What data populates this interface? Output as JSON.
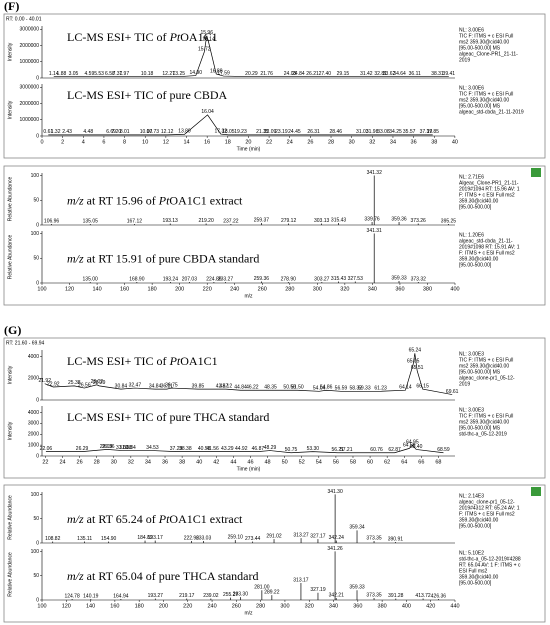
{
  "chart_data": [
    {
      "type": "line",
      "panel": "(F)",
      "header": "RT: 0.00 - 40.01",
      "xlabel": "Time (min)",
      "ylabel": "Intensity",
      "xlim": [
        0,
        40.01
      ],
      "xticks": [
        0,
        2,
        4,
        6,
        8,
        10,
        12,
        14,
        16,
        18,
        20,
        22,
        24,
        26,
        28,
        30,
        32,
        34,
        36,
        38,
        40
      ],
      "series": [
        {
          "title": [
            "LC-MS ESI+ TIC of ",
            "Pt",
            "OA1C1"
          ],
          "title_italic": [
            false,
            true,
            false
          ],
          "color": "#000000",
          "info": [
            "NL: 3.00E6",
            "TIC F: ITMS + c ESI Full",
            "ms2 359.30@cid40.00",
            "[95.00-500.00] MS",
            "algeac_Clone-PR1_21-11-",
            "2019"
          ],
          "ylim": [
            0,
            3200000
          ],
          "yticks": [
            0,
            1000000,
            2000000,
            3000000
          ],
          "x": [
            1.14,
            1.88,
            3.05,
            4.59,
            5.53,
            6.58,
            7.31,
            7.97,
            10.18,
            12.27,
            13.25,
            14.9,
            15.72,
            15.96,
            16.14,
            16.88,
            17.59,
            20.29,
            21.76,
            24.03,
            24.84,
            26.21,
            27.4,
            29.15,
            31.42,
            32.81,
            33.62,
            34.64,
            36.11,
            38.31,
            39.41
          ],
          "x_labels": [
            "1.14",
            "1.88",
            "3.05",
            "4.59",
            "5.53",
            "6.58",
            "7.31",
            "7.97",
            "10.18",
            "12.27",
            "13.25",
            "14.90",
            "15.72",
            "15.96",
            "16.14",
            "16.88",
            "17.59",
            "20.29",
            "21.76",
            "24.03",
            "24.84",
            "26.21",
            "27.40",
            "29.15",
            "31.42",
            "32.81",
            "33.62",
            "34.64",
            "36.11",
            "38.31",
            "39.41"
          ],
          "values": [
            90000,
            80000,
            80000,
            80000,
            80000,
            80000,
            80000,
            80000,
            80000,
            80000,
            80000,
            150000,
            1600000,
            2600000,
            2200000,
            250000,
            120000,
            80000,
            80000,
            80000,
            80000,
            80000,
            80000,
            80000,
            80000,
            80000,
            80000,
            80000,
            80000,
            80000,
            80000
          ]
        },
        {
          "title": [
            "LC-MS ESI+ TIC of pure CBDA"
          ],
          "title_italic": [
            false
          ],
          "color": "#000000",
          "info": [
            "NL: 3.00E6",
            "TIC F: ITMS + c ESI Full",
            "ms2 359.30@cid40.00",
            "[95.00-500.00] MS",
            "algeac_std-cbda_21-11-2019"
          ],
          "ylim": [
            0,
            3200000
          ],
          "yticks": [
            0,
            1000000,
            2000000,
            3000000
          ],
          "x": [
            0.61,
            1.32,
            2.43,
            4.48,
            6.69,
            7.2,
            8.01,
            10.07,
            10.73,
            12.12,
            13.8,
            16.04,
            17.32,
            18.05,
            19.23,
            21.35,
            22.09,
            23.19,
            24.45,
            26.31,
            28.46,
            31.03,
            31.98,
            33.08,
            34.25,
            35.57,
            37.19,
            37.85
          ],
          "x_labels": [
            "0.61",
            "1.32",
            "2.43",
            "4.48",
            "6.69",
            "7.20",
            "8.01",
            "10.07",
            "10.73",
            "12.12",
            "13.80",
            "16.04",
            "17.32",
            "18.05",
            "19.23",
            "21.35",
            "22.09",
            "23.19",
            "24.45",
            "26.31",
            "28.46",
            "31.03",
            "31.98",
            "33.08",
            "34.25",
            "35.57",
            "37.19",
            "37.85"
          ],
          "values": [
            70000,
            70000,
            70000,
            70000,
            70000,
            70000,
            70000,
            70000,
            70000,
            70000,
            100000,
            1300000,
            120000,
            70000,
            70000,
            70000,
            70000,
            70000,
            70000,
            70000,
            70000,
            70000,
            70000,
            70000,
            70000,
            70000,
            70000,
            70000
          ]
        }
      ]
    },
    {
      "type": "stem",
      "xlabel": "m/z",
      "ylabel": "Relative Abundance",
      "xlim": [
        100,
        400
      ],
      "xticks": [
        100,
        120,
        140,
        160,
        180,
        200,
        220,
        240,
        260,
        280,
        300,
        320,
        340,
        360,
        380,
        400
      ],
      "series": [
        {
          "title": [
            "m/z",
            " at RT 15.96 of ",
            "Pt",
            "OA1C1 extract"
          ],
          "title_italic": [
            true,
            false,
            true,
            false
          ],
          "color": "#000000",
          "info": [
            "NL: 2.71E6",
            "Algeac_Clone-PR1_21-11-",
            "2019#1094 RT: 15.96 AV: 1",
            "F: ITMS + c ESI Full ms2",
            "359.30@cid40.00",
            "[95.00-500.00]"
          ],
          "ylim": [
            0,
            105
          ],
          "yticks": [
            0,
            50,
            100
          ],
          "x": [
            106.96,
            135.05,
            167.12,
            193.13,
            219.2,
            237.22,
            259.37,
            279.12,
            303.13,
            315.43,
            339.76,
            341.32,
            359.36,
            373.26,
            395.25
          ],
          "x_labels": [
            "106.96",
            "135.05",
            "167.12",
            "193.13",
            "219.20",
            "237.22",
            "259.37",
            "279.12",
            "303.13",
            "315.43",
            "339.76",
            "341.32",
            "359.36",
            "373.26",
            "395.25"
          ],
          "values": [
            2,
            2,
            2,
            3,
            3,
            2,
            4,
            3,
            3,
            4,
            6,
            100,
            6,
            3,
            2
          ]
        },
        {
          "title": [
            "m/z",
            " at RT 15.91 of pure CBDA standard"
          ],
          "title_italic": [
            true,
            false
          ],
          "color": "#000000",
          "info": [
            "NL: 1.20E6",
            "algeac_std-cbda_21-11-",
            "2019#1098 RT: 15.91 AV: 1",
            "F: ITMS + c ESI Full ms2",
            "359.30@cid40.00",
            "[95.00-500.00]"
          ],
          "ylim": [
            0,
            105
          ],
          "yticks": [
            0,
            50,
            100
          ],
          "x": [
            135.0,
            168.9,
            193.24,
            207.03,
            224.86,
            233.27,
            259.36,
            278.9,
            303.27,
            315.43,
            327.53,
            341.31,
            359.33,
            373.32
          ],
          "x_labels": [
            "135.00",
            "168.90",
            "193.24",
            "207.03",
            "224.86",
            "233.27",
            "259.36",
            "278.90",
            "303.27",
            "315.43",
            "327.53",
            "341.31",
            "359.33",
            "373.32"
          ],
          "values": [
            2,
            2,
            2,
            2,
            2,
            2,
            3,
            2,
            2,
            3,
            3,
            100,
            4,
            2
          ]
        }
      ]
    },
    {
      "type": "line",
      "panel": "(G)",
      "header": "RT: 21.60 - 69.94",
      "xlabel": "Time (min)",
      "ylabel": "Intensity",
      "xlim": [
        21.6,
        69.94
      ],
      "xticks": [
        22,
        24,
        26,
        28,
        30,
        32,
        34,
        36,
        38,
        40,
        42,
        44,
        46,
        48,
        50,
        52,
        54,
        56,
        58,
        60,
        62,
        64,
        66,
        68
      ],
      "series": [
        {
          "title": [
            "LC-MS ESI+ TIC of ",
            "Pt",
            "OA1C1"
          ],
          "title_italic": [
            false,
            true,
            false
          ],
          "color": "#000000",
          "info": [
            "NL: 3.00E3",
            "TIC F: ITMS + c ESI Full",
            "ms2 359.30@cid40.00",
            "[95.00-500.00] MS",
            "algeac_clone-pr1_05-12-",
            "2019"
          ],
          "ylim": [
            0,
            4600
          ],
          "yticks": [
            0,
            2000,
            4000
          ],
          "x": [
            21.92,
            22.92,
            25.38,
            26.56,
            28.02,
            28.29,
            30.84,
            32.47,
            34.84,
            36.21,
            36.75,
            39.85,
            42.67,
            43.12,
            44.84,
            46.22,
            48.35,
            50.59,
            51.5,
            54.04,
            54.86,
            56.59,
            58.32,
            59.33,
            61.23,
            64.14,
            65.05,
            65.24,
            65.51,
            66.15,
            69.61
          ],
          "x_labels": [
            "21.92",
            "22.92",
            "25.38",
            "26.56",
            "28.02",
            "28.29",
            "30.84",
            "32.47",
            "34.84",
            "36.21",
            "36.75",
            "39.85",
            "42.67",
            "43.12",
            "44.84",
            "46.22",
            "48.35",
            "50.59",
            "51.50",
            "54.04",
            "54.86",
            "56.59",
            "58.32",
            "59.33",
            "61.23",
            "64.14",
            "65.05",
            "65.24",
            "65.51",
            "66.15",
            "69.61"
          ],
          "values": [
            1500,
            1200,
            1300,
            1100,
            1400,
            1300,
            1000,
            1100,
            1000,
            1000,
            1100,
            1000,
            1000,
            1000,
            900,
            900,
            900,
            900,
            900,
            800,
            900,
            800,
            800,
            800,
            800,
            900,
            3300,
            4300,
            2700,
            1000,
            500
          ]
        },
        {
          "title": [
            "LC-MS ESI+ TIC of pure THCA standard"
          ],
          "title_italic": [
            false
          ],
          "color": "#000000",
          "info": [
            "NL: 3.00E3",
            "TIC F: ITMS + c ESI Full",
            "ms2 359.30@cid40.00",
            "[95.00-500.00] MS",
            "std-thc-a_05-12-2019"
          ],
          "ylim": [
            0,
            4600
          ],
          "yticks": [
            0,
            1000,
            2000,
            3000,
            4000
          ],
          "x": [
            22.06,
            26.29,
            29.09,
            29.36,
            31.0,
            31.38,
            31.84,
            34.53,
            37.29,
            38.38,
            40.58,
            41.56,
            43.29,
            44.92,
            46.87,
            48.29,
            50.75,
            53.3,
            56.21,
            57.21,
            60.76,
            62.87,
            64.59,
            64.95,
            65.4,
            68.59
          ],
          "x_labels": [
            "22.06",
            "26.29",
            "29.09",
            "29.36",
            "31.00",
            "31.38",
            "31.84",
            "34.53",
            "37.29",
            "38.38",
            "40.58",
            "41.56",
            "43.29",
            "44.92",
            "46.87",
            "48.29",
            "50.75",
            "53.30",
            "56.21",
            "57.21",
            "60.76",
            "62.87",
            "64.59",
            "64.95",
            "65.40",
            "68.59"
          ],
          "values": [
            400,
            400,
            600,
            600,
            500,
            500,
            500,
            500,
            400,
            400,
            400,
            400,
            400,
            400,
            400,
            500,
            300,
            400,
            300,
            300,
            300,
            300,
            700,
            1000,
            600,
            300
          ]
        }
      ]
    },
    {
      "type": "stem",
      "xlabel": "m/z",
      "ylabel": "Relative Abundance",
      "xlim": [
        100,
        440
      ],
      "xticks": [
        100,
        120,
        140,
        160,
        180,
        200,
        220,
        240,
        260,
        280,
        300,
        320,
        340,
        360,
        380,
        400,
        420,
        440
      ],
      "series": [
        {
          "title": [
            "m/z",
            " at RT 65.24 of ",
            "Pt",
            "OA1C1 extract"
          ],
          "title_italic": [
            true,
            false,
            true,
            false
          ],
          "color": "#000000",
          "info": [
            "NL: 2.14E3",
            "algeac_clone-pr1_05-12-",
            "2019#4312 RT: 65.24 AV: 1",
            "F: ITMS + c ESI Full ms2",
            "359.30@cid40.00",
            "[95.00-500.00]"
          ],
          "ylim": [
            0,
            105
          ],
          "yticks": [
            0,
            50,
            100
          ],
          "x": [
            108.82,
            135.11,
            154.9,
            184.82,
            193.17,
            222.96,
            233.03,
            259.1,
            273.44,
            291.02,
            313.27,
            327.17,
            341.3,
            342.24,
            359.34,
            373.35,
            390.91
          ],
          "x_labels": [
            "108.82",
            "135.11",
            "154.90",
            "184.82",
            "193.17",
            "222.96",
            "233.03",
            "259.10",
            "273.44",
            "291.02",
            "313.27",
            "327.17",
            "341.30",
            "342.24",
            "359.34",
            "373.35",
            "390.91"
          ],
          "values": [
            3,
            3,
            3,
            5,
            5,
            4,
            4,
            6,
            3,
            8,
            10,
            8,
            100,
            5,
            26,
            4,
            2
          ]
        },
        {
          "title": [
            "m/z",
            " at RT 65.04 of pure THCA standard"
          ],
          "title_italic": [
            true,
            false
          ],
          "color": "#000000",
          "info": [
            "NL: 5.10E2",
            "std-thc-a_05-12-2019#4288",
            "RT: 65.04 AV: 1 F: ITMS + c",
            "ESI Full ms2",
            "359.30@cid40.00",
            "[95.00-500.00]"
          ],
          "ylim": [
            0,
            105
          ],
          "yticks": [
            0,
            50,
            100
          ],
          "x": [
            124.78,
            140.19,
            164.94,
            193.27,
            219.17,
            239.02,
            255.27,
            263.3,
            281.0,
            289.22,
            313.17,
            327.19,
            341.26,
            342.21,
            359.33,
            373.35,
            391.28,
            413.72,
            426.36
          ],
          "x_labels": [
            "124.78",
            "140.19",
            "164.94",
            "193.27",
            "219.17",
            "239.02",
            "255.27",
            "263.30",
            "281.00",
            "289.22",
            "313.17",
            "327.19",
            "341.26",
            "342.21",
            "359.33",
            "373.35",
            "391.28",
            "413.72",
            "426.36"
          ],
          "values": [
            2,
            2,
            2,
            3,
            3,
            3,
            5,
            6,
            20,
            10,
            35,
            15,
            100,
            4,
            20,
            4,
            3,
            3,
            2
          ]
        }
      ]
    }
  ]
}
